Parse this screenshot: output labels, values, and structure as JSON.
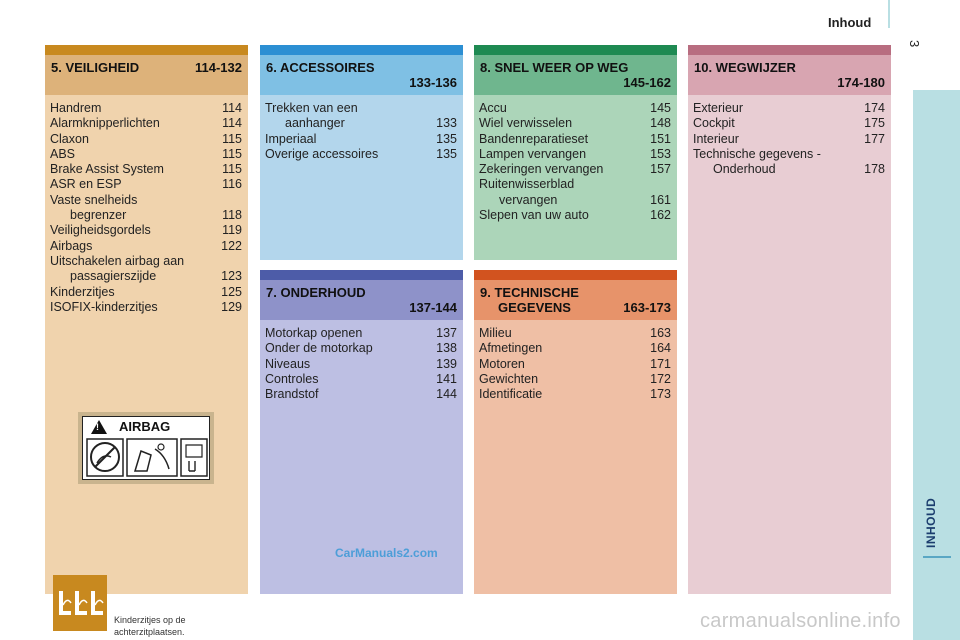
{
  "header": {
    "title": "Inhoud",
    "page_number": "3",
    "side_tab": "INHOUD"
  },
  "sections": {
    "s5": {
      "name": "5. VEILIGHEID",
      "range": "114-132",
      "entries": [
        {
          "label": "Handrem",
          "page": "114"
        },
        {
          "label": "Alarmknipperlichten",
          "page": "114"
        },
        {
          "label": "Claxon",
          "page": "115"
        },
        {
          "label": "ABS",
          "page": "115"
        },
        {
          "label": "Brake Assist System",
          "page": "115"
        },
        {
          "label": "ASR en ESP",
          "page": "116"
        },
        {
          "label": "Vaste snelheids",
          "label2": "begrenzer",
          "page": "118"
        },
        {
          "label": "Veiligheidsgordels",
          "page": "119"
        },
        {
          "label": "Airbags",
          "page": "122"
        },
        {
          "label": "Uitschakelen airbag aan",
          "label2": "passagierszijde",
          "page": "123"
        },
        {
          "label": "Kinderzitjes",
          "page": "125"
        },
        {
          "label": "ISOFIX-kinderzitjes",
          "page": "129"
        }
      ],
      "airbag_label": "AIRBAG",
      "caption": [
        "Kinderzitjes op de",
        "achterzitplaatsen."
      ]
    },
    "s6": {
      "name": "6. ACCESSOIRES",
      "range": "133-136",
      "entries": [
        {
          "label": "Trekken van een",
          "label2": "aanhanger",
          "page": "133"
        },
        {
          "label": "Imperiaal",
          "page": "135"
        },
        {
          "label": "Overige accessoires",
          "page": "135"
        }
      ]
    },
    "s7": {
      "name": "7. ONDERHOUD",
      "range": "137-144",
      "entries": [
        {
          "label": "Motorkap openen",
          "page": "137"
        },
        {
          "label": "Onder de motorkap",
          "page": "138"
        },
        {
          "label": "Niveaus",
          "page": "139"
        },
        {
          "label": "Controles",
          "page": "141"
        },
        {
          "label": "Brandstof",
          "page": "144"
        }
      ],
      "site_tag": "CarManuals2.com"
    },
    "s8": {
      "name": "8. SNEL WEER OP WEG",
      "range": "145-162",
      "entries": [
        {
          "label": "Accu",
          "page": "145"
        },
        {
          "label": "Wiel verwisselen",
          "page": "148"
        },
        {
          "label": "Bandenreparatieset",
          "page": "151"
        },
        {
          "label": "Lampen vervangen",
          "page": "153"
        },
        {
          "label": "Zekeringen vervangen",
          "page": "157"
        },
        {
          "label": "Ruitenwisserblad",
          "label2": "vervangen",
          "page": "161"
        },
        {
          "label": "Slepen van uw auto",
          "page": "162"
        }
      ]
    },
    "s9": {
      "name": "9. TECHNISCHE",
      "name2": "GEGEVENS",
      "range": "163-173",
      "entries": [
        {
          "label": "Milieu",
          "page": "163"
        },
        {
          "label": "Afmetingen",
          "page": "164"
        },
        {
          "label": "Motoren",
          "page": "171"
        },
        {
          "label": "Gewichten",
          "page": "172"
        },
        {
          "label": "Identificatie",
          "page": "173"
        }
      ]
    },
    "s10": {
      "name": "10. WEGWIJZER",
      "range": "174-180",
      "entries": [
        {
          "label": "Exterieur",
          "page": "174"
        },
        {
          "label": "Cockpit",
          "page": "175"
        },
        {
          "label": "Interieur",
          "page": "177"
        },
        {
          "label": "Technische gegevens -",
          "label2": "Onderhoud",
          "page": "178"
        }
      ]
    }
  },
  "watermark": "carmanualsonline.info",
  "colors": {
    "s5": {
      "bar": "#c8891f",
      "head": "#ddb27a",
      "body": "#f0d3ad"
    },
    "s6": {
      "bar": "#2c8fd3",
      "head": "#7fc0e4",
      "body": "#b3d6ec"
    },
    "s7": {
      "bar": "#4d5ca8",
      "head": "#8e92c9",
      "body": "#bdbfe3"
    },
    "s8": {
      "bar": "#1e8a52",
      "head": "#6fb68e",
      "body": "#acd5b9"
    },
    "s9": {
      "bar": "#d2531f",
      "head": "#e7936a",
      "body": "#efbfa5"
    },
    "s10": {
      "bar": "#b86d80",
      "head": "#d8a5b1",
      "body": "#e8cdd3"
    }
  }
}
